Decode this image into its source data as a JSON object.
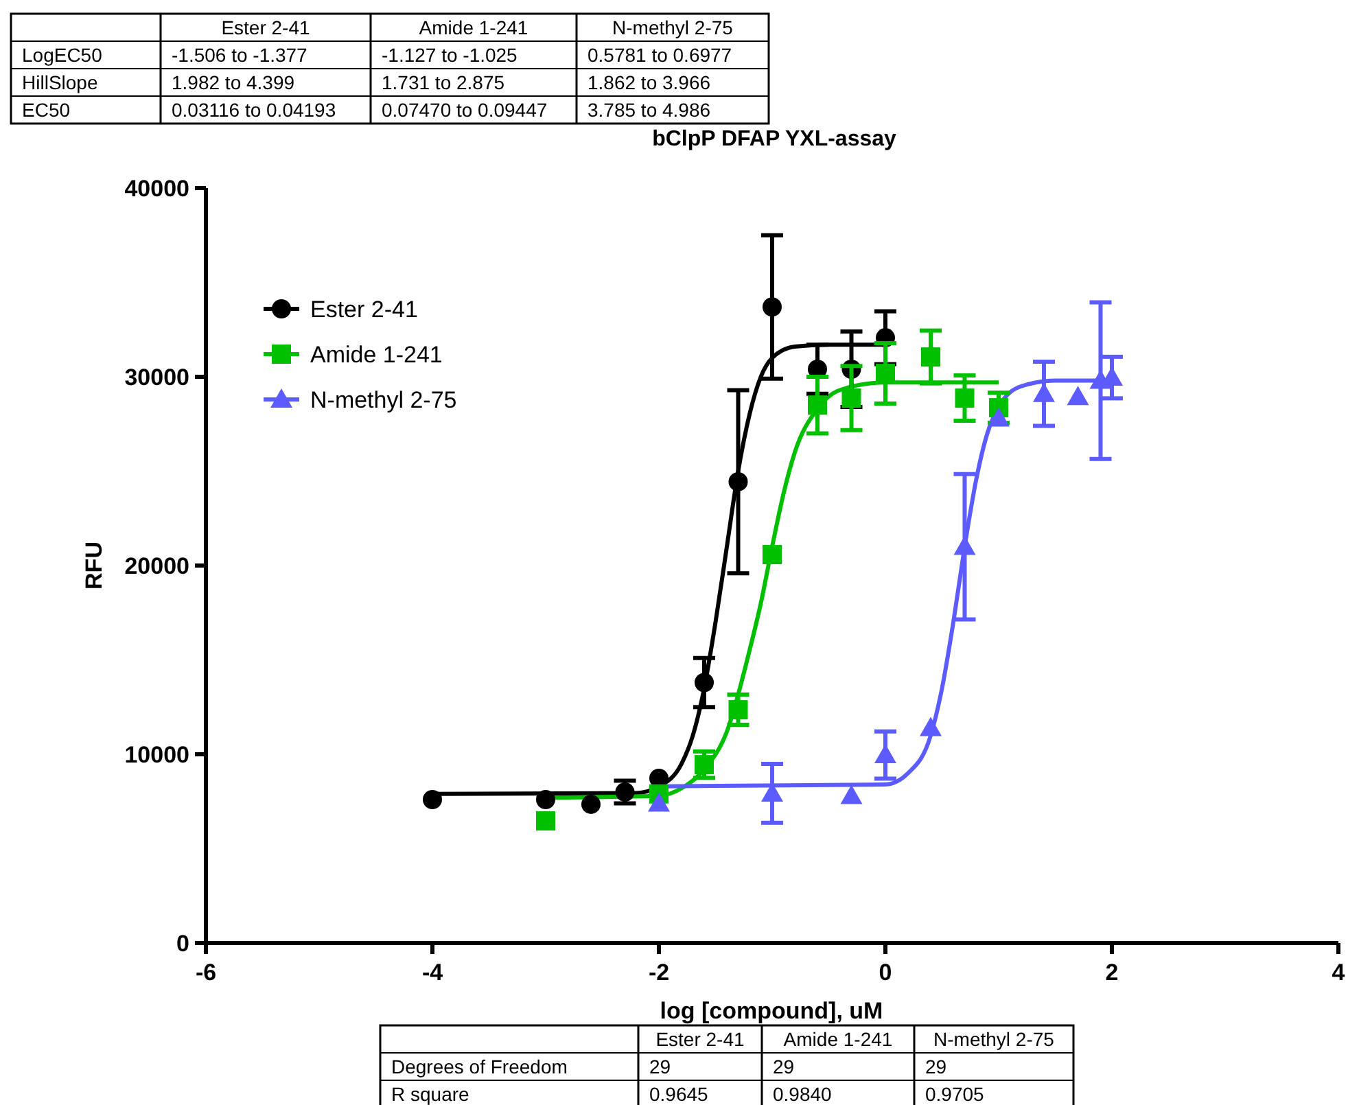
{
  "chart_data": {
    "type": "scatter",
    "title": "bClpP DFAP YXL-assay",
    "xlabel": "log [compound], uM",
    "ylabel": "RFU",
    "xlim": [
      -6,
      4
    ],
    "xticks": [
      -6,
      -4,
      -2,
      0,
      2,
      4
    ],
    "ylim": [
      0,
      40000
    ],
    "yticks": [
      0,
      10000,
      20000,
      30000,
      40000
    ],
    "grid": false,
    "legend": "top left",
    "series": [
      {
        "name": "Ester 2-41",
        "marker": "circle",
        "color": "#000000",
        "x": [
          -4,
          -3,
          -2.6,
          -2.3,
          -2,
          -1.6,
          -1.3,
          -1,
          -0.6,
          -0.3,
          0
        ],
        "values": [
          7600,
          7600,
          7350,
          8000,
          8730,
          13800,
          24440,
          33700,
          30400,
          30400,
          32070
        ],
        "errors": [
          null,
          null,
          null,
          600,
          null,
          1300,
          4850,
          3800,
          1300,
          2000,
          1400
        ]
      },
      {
        "name": "Amide 1-241",
        "marker": "square",
        "color": "#00c000",
        "x": [
          -3,
          -2,
          -1.6,
          -1.3,
          -1,
          -0.6,
          -0.3,
          0,
          0.4,
          0.7,
          1
        ],
        "values": [
          6470,
          7900,
          9450,
          12360,
          20580,
          28500,
          28870,
          30180,
          31050,
          28870,
          28360
        ],
        "errors": [
          null,
          null,
          700,
          800,
          null,
          1500,
          1700,
          1600,
          1400,
          1200,
          800
        ]
      },
      {
        "name": "N-methyl 2-75",
        "marker": "triangle",
        "color": "#5b5bff",
        "x": [
          -2,
          -1,
          -0.3,
          0,
          0.4,
          0.7,
          1,
          1.4,
          1.7,
          1.9,
          2
        ],
        "values": [
          7400,
          7930,
          7800,
          9960,
          11400,
          21000,
          27800,
          29100,
          28940,
          29800,
          29960
        ],
        "errors": [
          null,
          1560,
          null,
          1250,
          null,
          3850,
          null,
          1700,
          null,
          4150,
          1100
        ]
      },
      {
        "type": "line",
        "marker": "none",
        "color": "#000000",
        "x": [
          -4,
          -2.2,
          -2,
          -1.8,
          -1.7,
          -1.6,
          -1.5,
          -1.4,
          -1.3,
          -1.2,
          -1.1,
          -1,
          -0.8,
          -0.5,
          0
        ],
        "values": [
          7900,
          7950,
          8300,
          9500,
          11000,
          13500,
          17000,
          21000,
          25000,
          28000,
          30000,
          31000,
          31600,
          31700,
          31700
        ]
      },
      {
        "type": "line",
        "marker": "none",
        "color": "#00c000",
        "x": [
          -3,
          -2,
          -1.8,
          -1.6,
          -1.4,
          -1.2,
          -1.1,
          -1,
          -0.9,
          -0.8,
          -0.6,
          -0.4,
          0,
          1
        ],
        "values": [
          7700,
          7800,
          8200,
          9200,
          11200,
          15500,
          18000,
          21000,
          23800,
          26000,
          28300,
          29300,
          29700,
          29700
        ]
      },
      {
        "type": "line",
        "marker": "none",
        "color": "#5b5bff",
        "x": [
          -2,
          0,
          0.2,
          0.4,
          0.5,
          0.6,
          0.7,
          0.8,
          0.9,
          1,
          1.2,
          1.5,
          2
        ],
        "values": [
          8300,
          8400,
          9000,
          11000,
          13500,
          17000,
          21000,
          24500,
          27000,
          28400,
          29500,
          29800,
          29800
        ]
      }
    ],
    "annotations": [
      "Ester 2-41",
      "Amide 1-241",
      "N-methyl 2-75",
      "LogEC50",
      "-1.506 to -1.377",
      "-1.127 to -1.025",
      "0.5781 to 0.6977",
      "HillSlope",
      "1.982 to 4.399",
      "1.731 to 2.875",
      "1.862 to 3.966",
      "EC50",
      "0.03116 to 0.04193",
      "0.07470 to 0.09447",
      "3.785 to 4.986",
      "Ester 2-41",
      "Amide 1-241",
      "N-methyl 2-75",
      "Degrees of Freedom",
      "29",
      "29",
      "29",
      "R square",
      "0.9645",
      "0.9840",
      "0.9705"
    ]
  }
}
